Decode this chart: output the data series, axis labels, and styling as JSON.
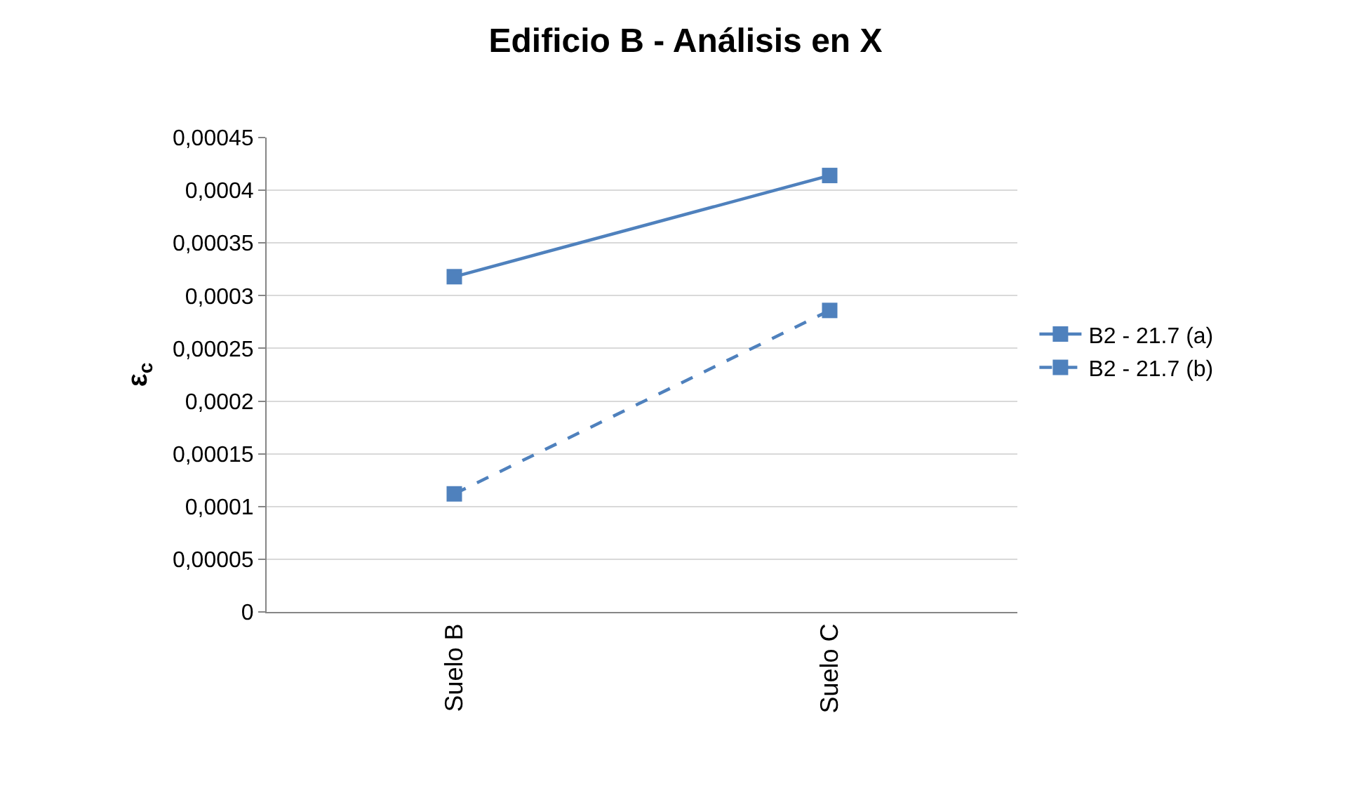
{
  "chart_data": {
    "type": "line",
    "title": "Edificio B - Análisis en X",
    "ylabel": "ε$_{c}$",
    "categories": [
      "Suelo B",
      "Suelo C"
    ],
    "series": [
      {
        "name": "B2 - 21.7 (a)",
        "color": "#4f81bd",
        "values": [
          0.000318,
          0.000414
        ],
        "line_style": "solid"
      },
      {
        "name": "B2 - 21.7 (b)",
        "color": "#4f81bd",
        "values": [
          0.000112,
          0.000286
        ],
        "line_style": "dashed"
      }
    ],
    "ylim": [
      0,
      0.00045
    ],
    "yticks": [
      0,
      {
        "value": 5e-05,
        "label": "0,00005"
      },
      {
        "value": 0.0001,
        "label": "0,0001"
      },
      {
        "value": 0.00015,
        "label": "0,00015"
      },
      {
        "value": 0.0002,
        "label": "0,0002"
      },
      {
        "value": 0.00025,
        "label": "0,00025"
      },
      {
        "value": 0.0003,
        "label": "0,0003"
      },
      {
        "value": 0.00035,
        "label": "0,00035"
      },
      {
        "value": 0.0004,
        "label": "0,0004"
      },
      {
        "value": 0.00045,
        "label": "0,00045"
      }
    ],
    "grid": "y",
    "legend": "right",
    "marker": "square"
  }
}
